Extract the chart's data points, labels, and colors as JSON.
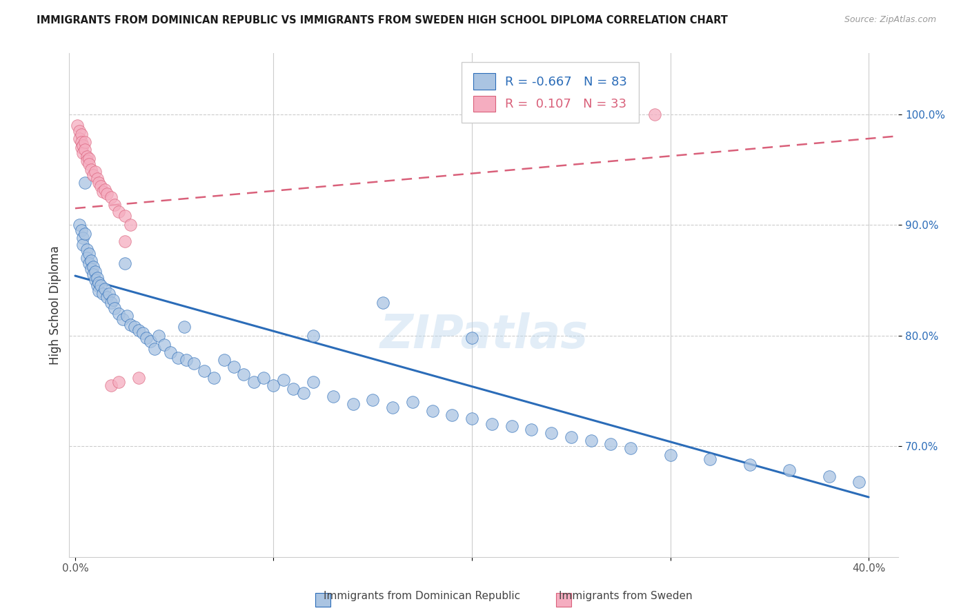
{
  "title": "IMMIGRANTS FROM DOMINICAN REPUBLIC VS IMMIGRANTS FROM SWEDEN HIGH SCHOOL DIPLOMA CORRELATION CHART",
  "source": "Source: ZipAtlas.com",
  "ylabel": "High School Diploma",
  "ytick_vals": [
    0.7,
    0.8,
    0.9,
    1.0
  ],
  "ymin": 0.6,
  "ymax": 1.055,
  "xmin": -0.003,
  "xmax": 0.415,
  "blue_R": "-0.667",
  "blue_N": "83",
  "pink_R": "0.107",
  "pink_N": "33",
  "blue_color": "#aac4e2",
  "pink_color": "#f5adc0",
  "blue_line_color": "#2b6cb8",
  "pink_line_color": "#d9607a",
  "legend_label_blue": "Immigrants from Dominican Republic",
  "legend_label_pink": "Immigrants from Sweden",
  "blue_dots_x": [
    0.002,
    0.003,
    0.004,
    0.004,
    0.005,
    0.006,
    0.006,
    0.007,
    0.007,
    0.008,
    0.008,
    0.009,
    0.009,
    0.01,
    0.01,
    0.011,
    0.011,
    0.012,
    0.012,
    0.013,
    0.014,
    0.015,
    0.016,
    0.017,
    0.018,
    0.019,
    0.02,
    0.022,
    0.024,
    0.026,
    0.028,
    0.03,
    0.032,
    0.034,
    0.036,
    0.038,
    0.04,
    0.042,
    0.045,
    0.048,
    0.052,
    0.056,
    0.06,
    0.065,
    0.07,
    0.075,
    0.08,
    0.085,
    0.09,
    0.095,
    0.1,
    0.105,
    0.11,
    0.115,
    0.12,
    0.13,
    0.14,
    0.15,
    0.16,
    0.17,
    0.18,
    0.19,
    0.2,
    0.21,
    0.22,
    0.23,
    0.24,
    0.25,
    0.26,
    0.27,
    0.28,
    0.3,
    0.32,
    0.34,
    0.36,
    0.38,
    0.395,
    0.005,
    0.025,
    0.055,
    0.12,
    0.2,
    0.155
  ],
  "blue_dots_y": [
    0.9,
    0.895,
    0.888,
    0.882,
    0.892,
    0.878,
    0.87,
    0.874,
    0.865,
    0.868,
    0.86,
    0.862,
    0.855,
    0.858,
    0.85,
    0.852,
    0.845,
    0.848,
    0.84,
    0.845,
    0.838,
    0.842,
    0.835,
    0.838,
    0.83,
    0.832,
    0.825,
    0.82,
    0.815,
    0.818,
    0.81,
    0.808,
    0.805,
    0.802,
    0.798,
    0.795,
    0.788,
    0.8,
    0.792,
    0.785,
    0.78,
    0.778,
    0.775,
    0.768,
    0.762,
    0.778,
    0.772,
    0.765,
    0.758,
    0.762,
    0.755,
    0.76,
    0.752,
    0.748,
    0.758,
    0.745,
    0.738,
    0.742,
    0.735,
    0.74,
    0.732,
    0.728,
    0.725,
    0.72,
    0.718,
    0.715,
    0.712,
    0.708,
    0.705,
    0.702,
    0.698,
    0.692,
    0.688,
    0.683,
    0.678,
    0.673,
    0.668,
    0.938,
    0.865,
    0.808,
    0.8,
    0.798,
    0.83
  ],
  "pink_dots_x": [
    0.001,
    0.002,
    0.002,
    0.003,
    0.003,
    0.003,
    0.004,
    0.004,
    0.005,
    0.005,
    0.006,
    0.006,
    0.007,
    0.007,
    0.008,
    0.009,
    0.01,
    0.011,
    0.012,
    0.013,
    0.014,
    0.015,
    0.016,
    0.018,
    0.02,
    0.022,
    0.025,
    0.028,
    0.032,
    0.018,
    0.022,
    0.025,
    0.292
  ],
  "pink_dots_y": [
    0.99,
    0.985,
    0.978,
    0.982,
    0.975,
    0.97,
    0.972,
    0.965,
    0.975,
    0.968,
    0.962,
    0.958,
    0.96,
    0.955,
    0.95,
    0.945,
    0.948,
    0.942,
    0.938,
    0.935,
    0.93,
    0.932,
    0.928,
    0.925,
    0.918,
    0.912,
    0.908,
    0.9,
    0.762,
    0.755,
    0.758,
    0.885,
    1.0
  ],
  "blue_trend_x0": 0.0,
  "blue_trend_y0": 0.854,
  "blue_trend_x1": 0.4,
  "blue_trend_y1": 0.654,
  "pink_trend_x0": 0.0,
  "pink_trend_y0": 0.915,
  "pink_trend_x1": 0.4,
  "pink_trend_y1": 0.978
}
